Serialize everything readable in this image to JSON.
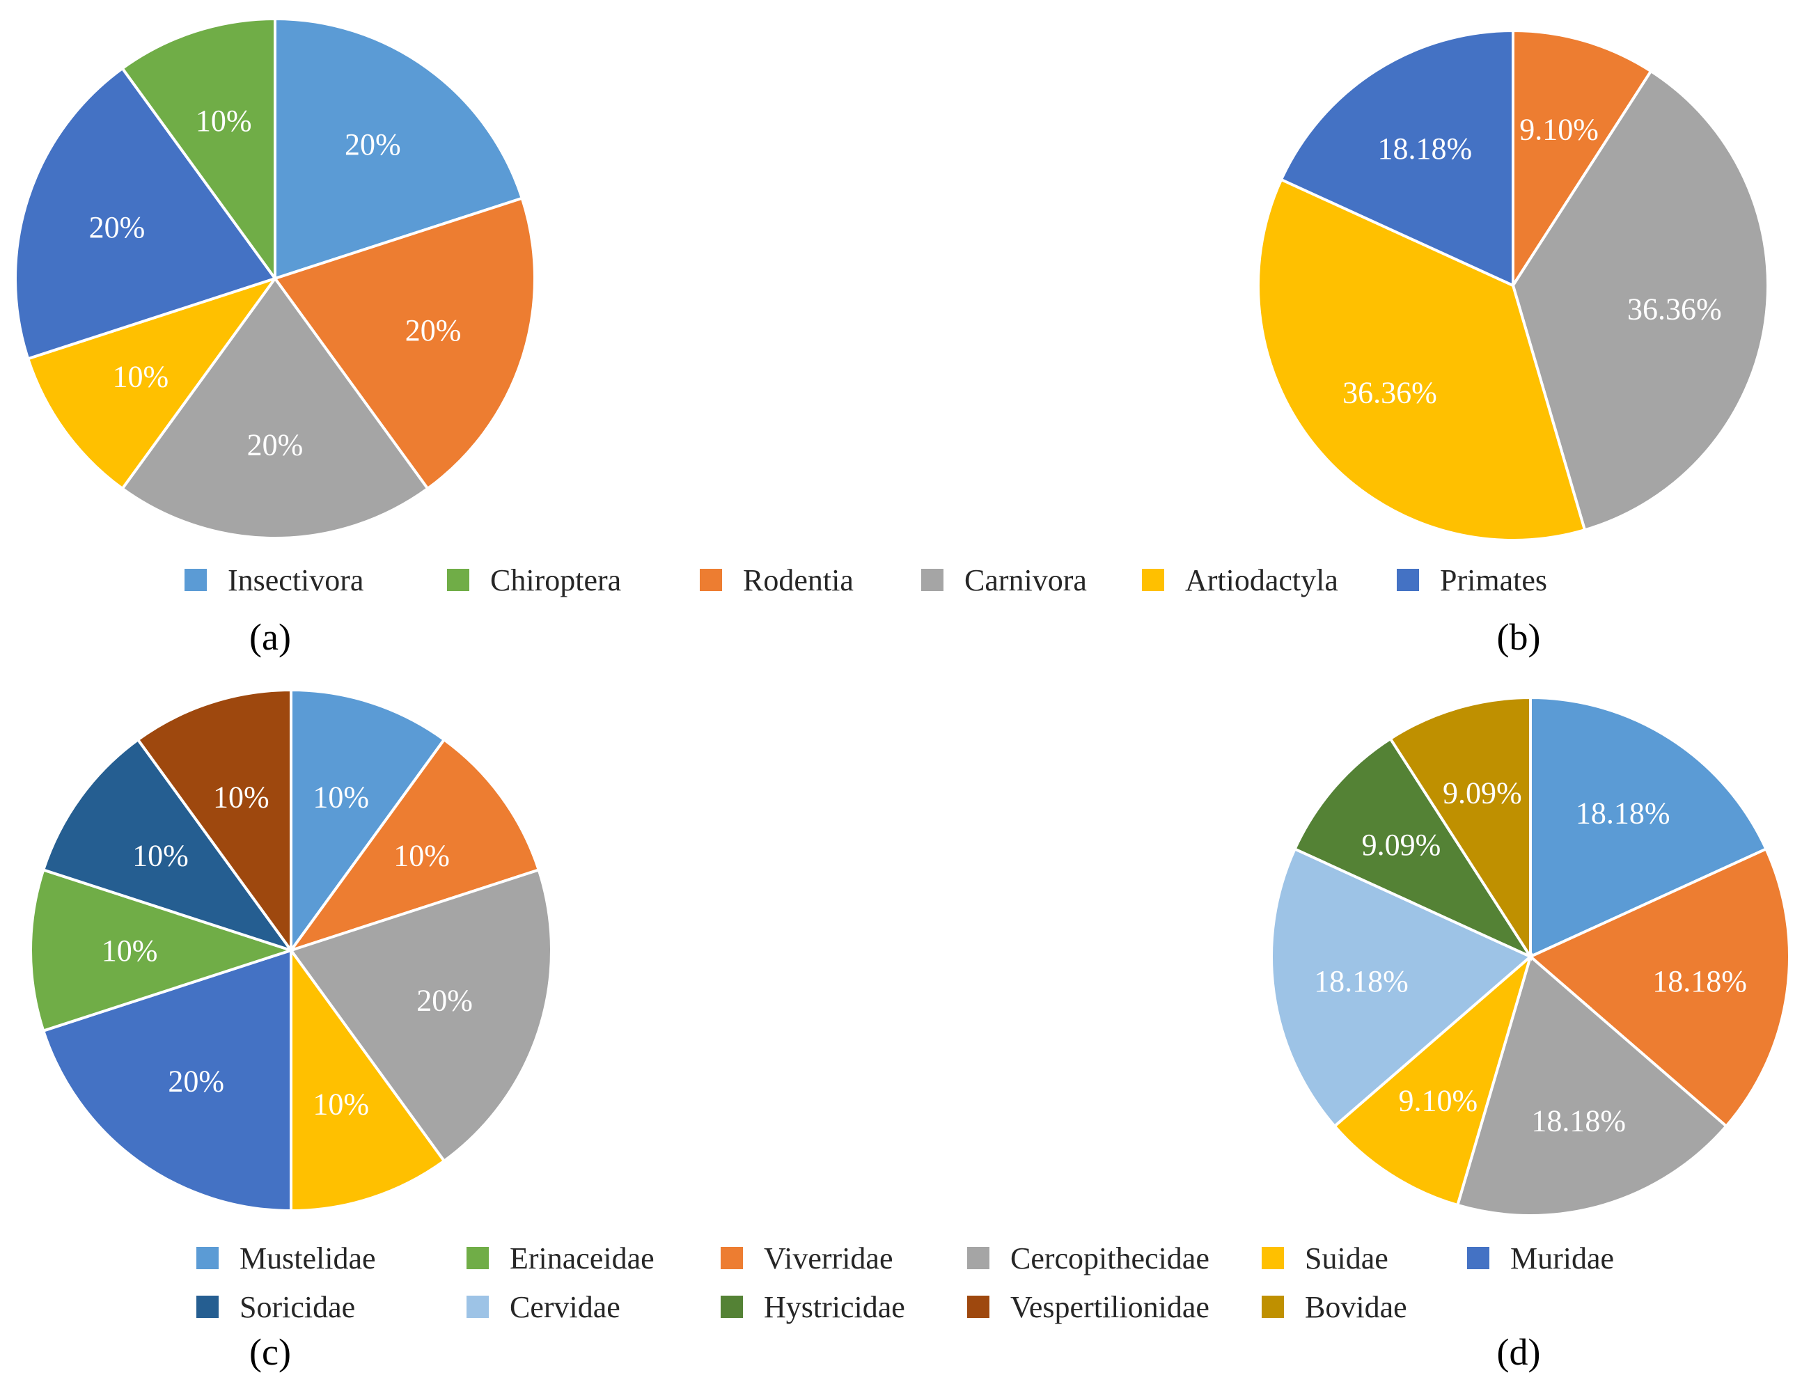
{
  "chart_data": [
    {
      "type": "pie",
      "panel": "(a)",
      "categories": [
        "Insectivora",
        "Rodentia",
        "Carnivora",
        "Artiodactyla",
        "Primates",
        "Chiroptera"
      ],
      "values": [
        20,
        20,
        20,
        10,
        20,
        10
      ],
      "labels": [
        "20%",
        "20%",
        "20%",
        "10%",
        "20%",
        "10%"
      ],
      "colors": [
        "#5B9BD5",
        "#ED7D31",
        "#A5A5A5",
        "#FFC000",
        "#4472C4",
        "#70AD47"
      ]
    },
    {
      "type": "pie",
      "panel": "(b)",
      "categories": [
        "Rodentia",
        "Carnivora",
        "Artiodactyla",
        "Primates"
      ],
      "values": [
        9.1,
        36.36,
        36.36,
        18.18
      ],
      "labels": [
        "9.10%",
        "36.36%",
        "36.36%",
        "18.18%"
      ],
      "colors": [
        "#ED7D31",
        "#A5A5A5",
        "#FFC000",
        "#4472C4"
      ]
    },
    {
      "type": "pie",
      "panel": "(c)",
      "categories": [
        "Mustelidae",
        "Viverridae",
        "Cercopithecidae",
        "Suidae",
        "Muridae",
        "Erinaceidae",
        "Soricidae",
        "Vespertilionidae"
      ],
      "values": [
        10,
        10,
        20,
        10,
        20,
        10,
        10,
        10
      ],
      "labels": [
        "10%",
        "10%",
        "20%",
        "10%",
        "20%",
        "10%",
        "10%",
        "10%"
      ],
      "colors": [
        "#5B9BD5",
        "#ED7D31",
        "#A5A5A5",
        "#FFC000",
        "#4472C4",
        "#70AD47",
        "#255E91",
        "#9E480E"
      ]
    },
    {
      "type": "pie",
      "panel": "(d)",
      "categories": [
        "Mustelidae",
        "Viverridae",
        "Cercopithecidae",
        "Suidae",
        "Cervidae",
        "Hystricidae",
        "Bovidae"
      ],
      "values": [
        18.18,
        18.18,
        18.18,
        9.1,
        18.18,
        9.09,
        9.09
      ],
      "labels": [
        "18.18%",
        "18.18%",
        "18.18%",
        "9.10%",
        "18.18%",
        "9.09%",
        "9.09%"
      ],
      "colors": [
        "#5B9BD5",
        "#ED7D31",
        "#A5A5A5",
        "#FFC000",
        "#9DC3E6",
        "#548235",
        "#BF9000"
      ]
    }
  ],
  "legend_top": [
    {
      "label": "Insectivora",
      "color": "#5B9BD5"
    },
    {
      "label": "Chiroptera",
      "color": "#70AD47"
    },
    {
      "label": "Rodentia",
      "color": "#ED7D31"
    },
    {
      "label": "Carnivora",
      "color": "#A5A5A5"
    },
    {
      "label": "Artiodactyla",
      "color": "#FFC000"
    },
    {
      "label": "Primates",
      "color": "#4472C4"
    }
  ],
  "legend_bottom": [
    {
      "label": "Mustelidae",
      "color": "#5B9BD5"
    },
    {
      "label": "Erinaceidae",
      "color": "#70AD47"
    },
    {
      "label": "Viverridae",
      "color": "#ED7D31"
    },
    {
      "label": "Cercopithecidae",
      "color": "#A5A5A5"
    },
    {
      "label": "Suidae",
      "color": "#FFC000"
    },
    {
      "label": "Muridae",
      "color": "#4472C4"
    },
    {
      "label": "Soricidae",
      "color": "#255E91"
    },
    {
      "label": "Cervidae",
      "color": "#9DC3E6"
    },
    {
      "label": "Hystricidae",
      "color": "#548235"
    },
    {
      "label": "Vespertilionidae",
      "color": "#9E480E"
    },
    {
      "label": "Bovidae",
      "color": "#BF9000"
    }
  ],
  "captions": {
    "a": "(a)",
    "b": "(b)",
    "c": "(c)",
    "d": "(d)"
  }
}
